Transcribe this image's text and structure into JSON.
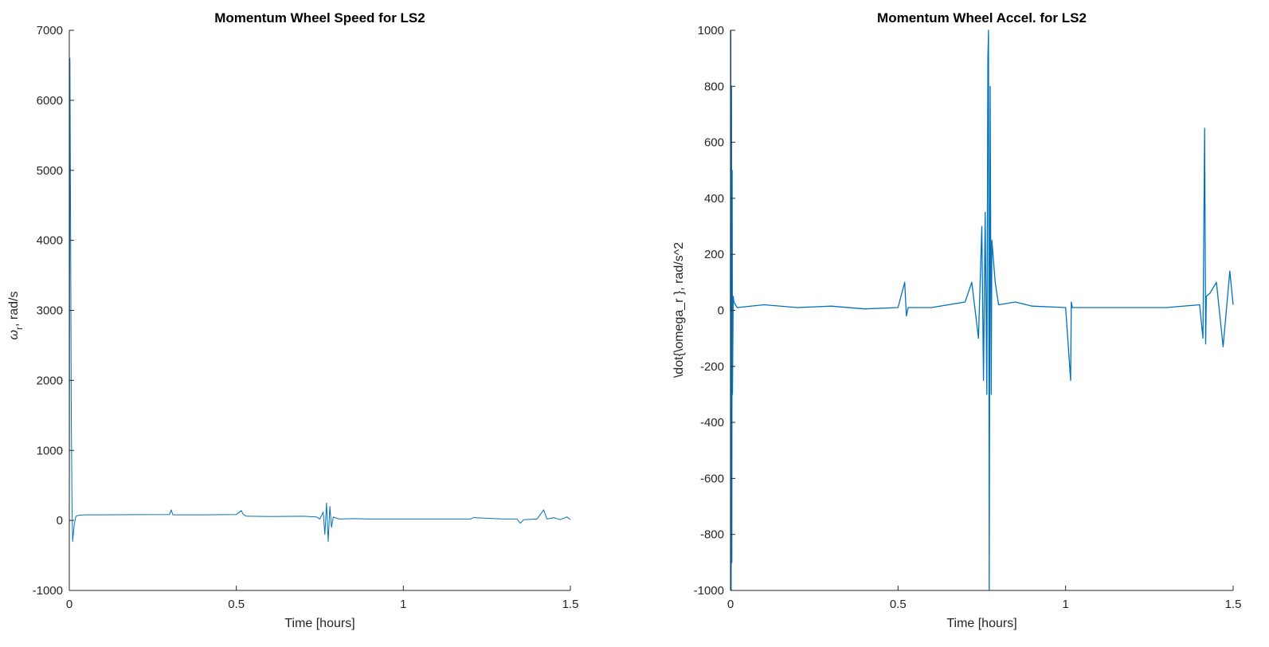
{
  "chart_data": [
    {
      "type": "line",
      "title": "Momentum Wheel Speed for LS2",
      "xlabel": "Time [hours]",
      "ylabel_symbol": "ω",
      "ylabel_subscript": "r",
      "ylabel_unit": ", rad/s",
      "xlim": [
        0,
        1.5
      ],
      "ylim": [
        -1000,
        7000
      ],
      "xticks": [
        0,
        0.5,
        1,
        1.5
      ],
      "xtick_labels": [
        "0",
        "0.5",
        "1",
        "1.5"
      ],
      "yticks": [
        -1000,
        0,
        1000,
        2000,
        3000,
        4000,
        5000,
        6000,
        7000
      ],
      "ytick_labels": [
        "-1000",
        "0",
        "1000",
        "2000",
        "3000",
        "4000",
        "5000",
        "6000",
        "7000"
      ],
      "grid": false,
      "color": "#0072BD",
      "series": [
        {
          "x": [
            0,
            0.002,
            0.004,
            0.006,
            0.008,
            0.01,
            0.012,
            0.015,
            0.02,
            0.03,
            0.05,
            0.1,
            0.2,
            0.3,
            0.305,
            0.31,
            0.32,
            0.4,
            0.5,
            0.515,
            0.52,
            0.53,
            0.54,
            0.6,
            0.7,
            0.74,
            0.75,
            0.76,
            0.765,
            0.77,
            0.775,
            0.78,
            0.785,
            0.79,
            0.8,
            0.81,
            0.85,
            0.9,
            1.0,
            1.1,
            1.2,
            1.21,
            1.3,
            1.34,
            1.35,
            1.36,
            1.4,
            1.42,
            1.43,
            1.45,
            1.47,
            1.49,
            1.5
          ],
          "y": [
            0,
            6600,
            4000,
            1500,
            200,
            -300,
            -200,
            -50,
            60,
            75,
            80,
            80,
            82,
            85,
            150,
            80,
            80,
            80,
            85,
            140,
            90,
            60,
            60,
            55,
            60,
            50,
            20,
            120,
            -200,
            250,
            -300,
            200,
            -100,
            50,
            30,
            20,
            25,
            20,
            20,
            20,
            20,
            40,
            20,
            20,
            -40,
            10,
            20,
            150,
            20,
            40,
            10,
            50,
            10
          ]
        }
      ]
    },
    {
      "type": "line",
      "title": "Momentum Wheel Accel. for LS2",
      "xlabel": "Time [hours]",
      "ylabel": "\\dot{\\omega_r }, rad/s^2",
      "xlim": [
        0,
        1.5
      ],
      "ylim": [
        -1000,
        1000
      ],
      "xticks": [
        0,
        0.5,
        1,
        1.5
      ],
      "xtick_labels": [
        "0",
        "0.5",
        "1",
        "1.5"
      ],
      "yticks": [
        -1000,
        -800,
        -600,
        -400,
        -200,
        0,
        200,
        400,
        600,
        800,
        1000
      ],
      "ytick_labels": [
        "-1000",
        "-800",
        "-600",
        "-400",
        "-200",
        "0",
        "200",
        "400",
        "600",
        "800",
        "1000"
      ],
      "grid": false,
      "color": "#0072BD",
      "series": [
        {
          "x": [
            0,
            0.001,
            0.002,
            0.003,
            0.004,
            0.005,
            0.006,
            0.008,
            0.01,
            0.02,
            0.1,
            0.2,
            0.3,
            0.4,
            0.5,
            0.52,
            0.525,
            0.53,
            0.6,
            0.7,
            0.72,
            0.74,
            0.75,
            0.755,
            0.76,
            0.765,
            0.768,
            0.77,
            0.772,
            0.775,
            0.778,
            0.78,
            0.79,
            0.8,
            0.85,
            0.9,
            1.0,
            1.015,
            1.017,
            1.02,
            1.1,
            1.2,
            1.3,
            1.4,
            1.41,
            1.415,
            1.418,
            1.42,
            1.43,
            1.45,
            1.47,
            1.49,
            1.5
          ],
          "y": [
            0,
            1000,
            -1000,
            800,
            -900,
            500,
            -300,
            50,
            30,
            10,
            20,
            10,
            15,
            5,
            10,
            100,
            -20,
            10,
            10,
            30,
            100,
            -100,
            300,
            -250,
            350,
            -300,
            900,
            1000,
            -1000,
            800,
            -300,
            250,
            100,
            20,
            30,
            15,
            10,
            -250,
            30,
            10,
            10,
            10,
            10,
            20,
            -100,
            650,
            -120,
            50,
            60,
            100,
            -130,
            140,
            20
          ]
        }
      ]
    }
  ]
}
